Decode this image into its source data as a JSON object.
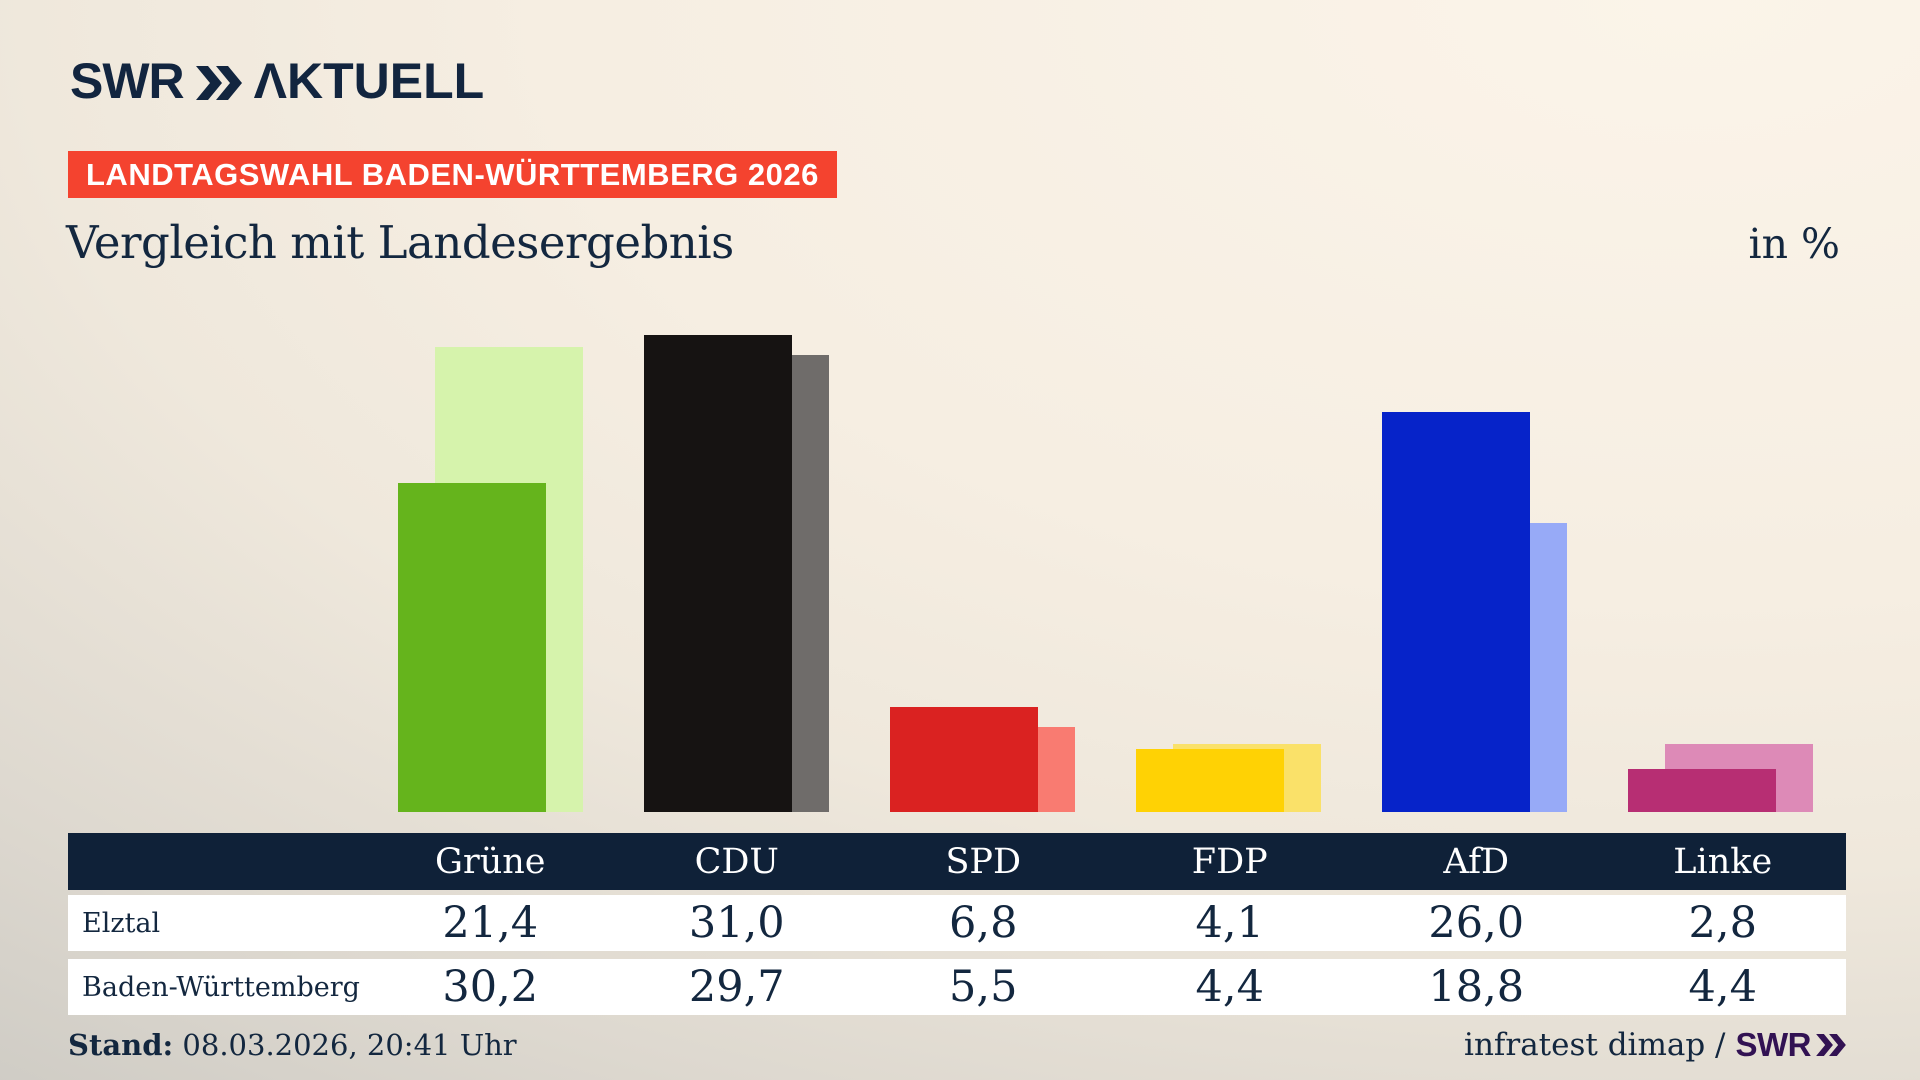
{
  "logo": {
    "brand": "SWR",
    "suffix": "ΛKTUELL"
  },
  "badge": {
    "label": "LANDTAGSWAHL BADEN-WÜRTTEMBERG 2026"
  },
  "titles": {
    "heading": "Vergleich mit Landesergebnis",
    "unit": "in %"
  },
  "chart_data": {
    "type": "bar",
    "title": "Vergleich mit Landesergebnis",
    "unit_label": "in %",
    "categories": [
      "Grüne",
      "CDU",
      "SPD",
      "FDP",
      "AfD",
      "Linke"
    ],
    "series": [
      {
        "name": "Elztal",
        "role": "front",
        "values": [
          21.4,
          31.0,
          6.8,
          4.1,
          26.0,
          2.8
        ]
      },
      {
        "name": "Baden-Württemberg",
        "role": "back",
        "values": [
          30.2,
          29.7,
          5.5,
          4.4,
          18.8,
          4.4
        ]
      }
    ],
    "bar_colors_front": [
      "#65b41c",
      "#161312",
      "#da2221",
      "#ffd204",
      "#0623c9",
      "#b72e73"
    ],
    "bar_colors_back": [
      "#d6f3ac",
      "#6f6c6a",
      "#f97b71",
      "#fae169",
      "#97aaf7",
      "#dd8ab7"
    ],
    "ylim": [
      0,
      33
    ],
    "gridlines": false,
    "axis_labels": "none",
    "legend": "values shown in table below chart"
  },
  "table": {
    "columns": [
      "Grüne",
      "CDU",
      "SPD",
      "FDP",
      "AfD",
      "Linke"
    ],
    "rows": [
      {
        "label": "Elztal",
        "values": [
          "21,4",
          "31,0",
          "6,8",
          "4,1",
          "26,0",
          "2,8"
        ]
      },
      {
        "label": "Baden-Württemberg",
        "values": [
          "30,2",
          "29,7",
          "5,5",
          "4,4",
          "18,8",
          "4,4"
        ]
      }
    ]
  },
  "footer": {
    "stand_label": "Stand:",
    "stand_value": " 08.03.2026, 20:41 Uhr",
    "source_text": "infratest dimap /",
    "source_brand": "SWR"
  },
  "colors": {
    "navy": "#13273f",
    "table_header_bg": "#0f2138",
    "badge_bg": "#f4432f",
    "brand_purple": "#321253",
    "background_light": "#f8f0e4",
    "background_dark": "#cfccc5"
  }
}
